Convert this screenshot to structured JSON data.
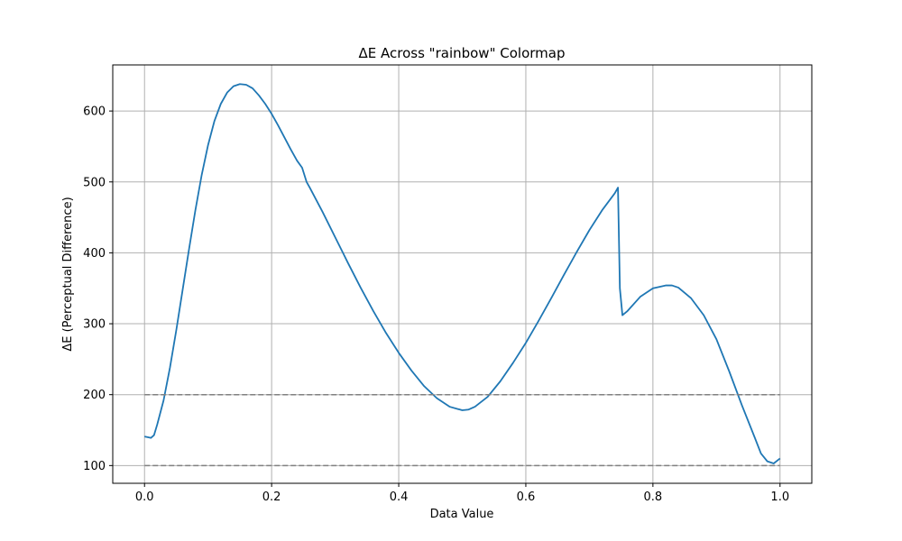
{
  "chart_data": {
    "type": "line",
    "title": "ΔE Across \"rainbow\" Colormap",
    "xlabel": "Data Value",
    "ylabel": "ΔE (Perceptual Difference)",
    "xlim": [
      -0.05,
      1.05
    ],
    "ylim": [
      75,
      665
    ],
    "x_ticks": [
      0.0,
      0.2,
      0.4,
      0.6,
      0.8,
      1.0
    ],
    "x_tick_labels": [
      "0.0",
      "0.2",
      "0.4",
      "0.6",
      "0.8",
      "1.0"
    ],
    "y_ticks": [
      100,
      200,
      300,
      400,
      500,
      600
    ],
    "y_tick_labels": [
      "100",
      "200",
      "300",
      "400",
      "500",
      "600"
    ],
    "grid": true,
    "series": [
      {
        "color": "#1f77b4",
        "style": "solid",
        "x": [
          0.0,
          0.005,
          0.01,
          0.015,
          0.02,
          0.03,
          0.04,
          0.05,
          0.06,
          0.07,
          0.08,
          0.09,
          0.1,
          0.11,
          0.12,
          0.13,
          0.14,
          0.15,
          0.16,
          0.17,
          0.18,
          0.19,
          0.2,
          0.21,
          0.22,
          0.23,
          0.24,
          0.248,
          0.255,
          0.26,
          0.28,
          0.3,
          0.32,
          0.34,
          0.36,
          0.38,
          0.4,
          0.42,
          0.44,
          0.46,
          0.48,
          0.5,
          0.51,
          0.52,
          0.54,
          0.56,
          0.58,
          0.6,
          0.62,
          0.64,
          0.66,
          0.68,
          0.7,
          0.72,
          0.74,
          0.745,
          0.748,
          0.752,
          0.76,
          0.78,
          0.8,
          0.82,
          0.83,
          0.84,
          0.86,
          0.88,
          0.9,
          0.92,
          0.94,
          0.96,
          0.97,
          0.98,
          0.99,
          1.0
        ],
        "y": [
          141,
          140,
          139,
          143,
          158,
          192,
          238,
          291,
          348,
          405,
          460,
          510,
          552,
          586,
          610,
          626,
          635,
          638,
          637,
          632,
          622,
          610,
          596,
          580,
          563,
          546,
          530,
          520,
          500,
          492,
          458,
          422,
          386,
          351,
          318,
          287,
          259,
          234,
          212,
          195,
          183,
          178,
          179,
          183,
          197,
          219,
          245,
          273,
          304,
          336,
          369,
          401,
          432,
          460,
          484,
          492,
          350,
          312,
          318,
          338,
          350,
          354,
          354,
          351,
          336,
          312,
          278,
          233,
          185,
          140,
          117,
          106,
          103,
          110
        ]
      },
      {
        "color": "#808080",
        "style": "dashed",
        "x": [
          0.0,
          1.0
        ],
        "y": [
          200,
          200
        ]
      },
      {
        "color": "#808080",
        "style": "dashed",
        "x": [
          0.0,
          1.0
        ],
        "y": [
          100,
          100
        ]
      }
    ]
  }
}
